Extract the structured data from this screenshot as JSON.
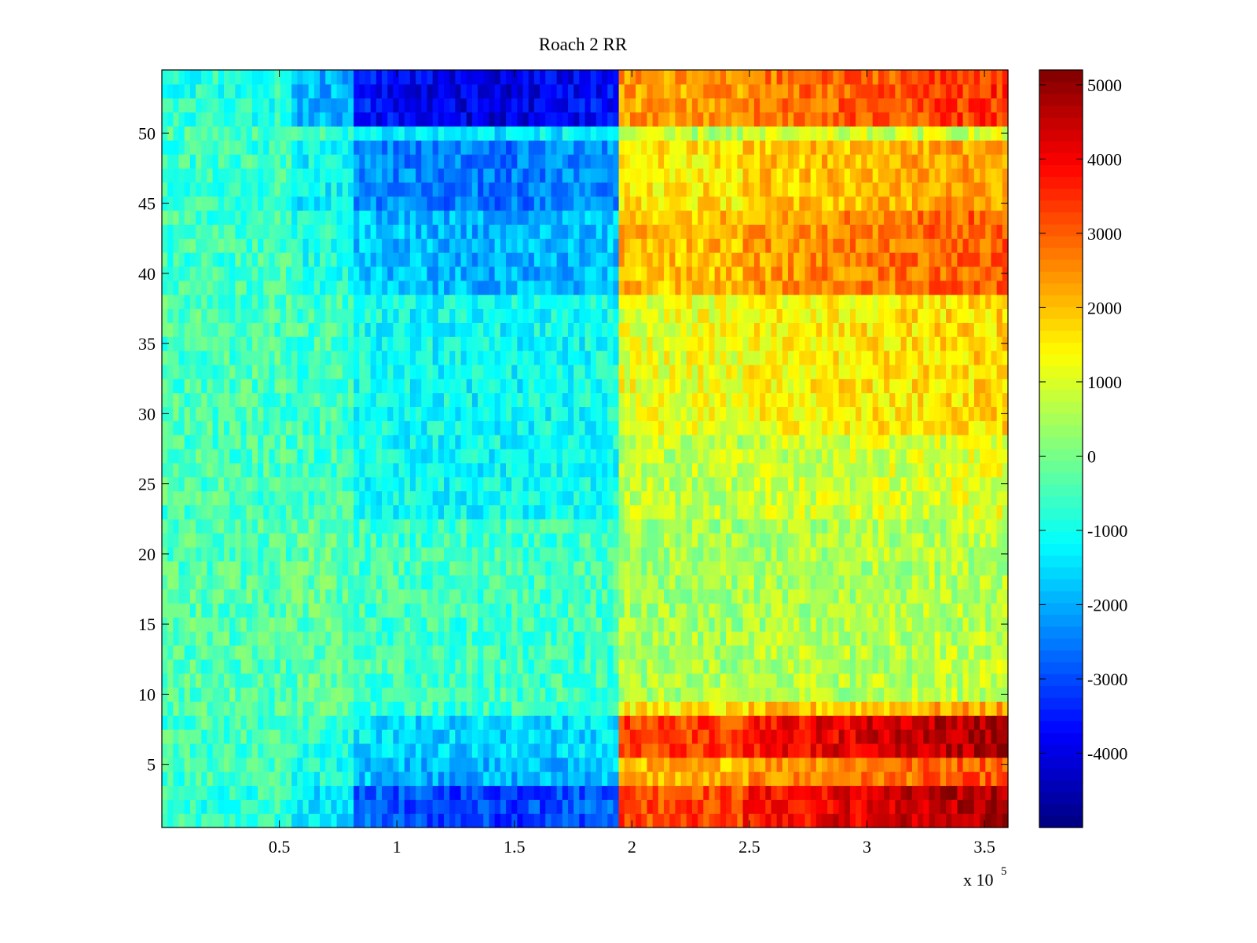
{
  "chart_data": {
    "type": "heatmap",
    "title": "Roach 2 RR",
    "xlabel": "",
    "ylabel": "",
    "x_multiplier_label": "x 10",
    "x_multiplier_exponent": "5",
    "xlim": [
      0,
      360000
    ],
    "ylim": [
      0.5,
      54.5
    ],
    "x_ticks": [
      50000,
      100000,
      150000,
      200000,
      250000,
      300000,
      350000
    ],
    "x_tick_labels": [
      "0.5",
      "1",
      "1.5",
      "2",
      "2.5",
      "3",
      "3.5"
    ],
    "y_ticks": [
      5,
      10,
      15,
      20,
      25,
      30,
      35,
      40,
      45,
      50
    ],
    "y_tick_labels": [
      "5",
      "10",
      "15",
      "20",
      "25",
      "30",
      "35",
      "40",
      "45",
      "50"
    ],
    "rows": 54,
    "colormap": "jet",
    "colorbar": {
      "range": [
        -5000,
        5200
      ],
      "ticks": [
        -4000,
        -3000,
        -2000,
        -1000,
        0,
        1000,
        2000,
        3000,
        4000,
        5000
      ],
      "tick_labels": [
        "-4000",
        "-3000",
        "-2000",
        "-1000",
        "0",
        "1000",
        "2000",
        "3000",
        "4000",
        "5000"
      ],
      "placement": "right"
    },
    "x_segments": [
      {
        "x_start": 0,
        "x_end": 55000,
        "level": "low"
      },
      {
        "x_start": 55000,
        "x_end": 82000,
        "level": "mid-negative"
      },
      {
        "x_start": 82000,
        "x_end": 194000,
        "level": "negative"
      },
      {
        "x_start": 194000,
        "x_end": 248000,
        "level": "positive"
      },
      {
        "x_start": 248000,
        "x_end": 360000,
        "level": "high-positive"
      }
    ],
    "row_profile_note_values": {
      "rows_1_to_3": {
        "left": -2500,
        "right": 4800
      },
      "rows_6_to_8": {
        "left": -1500,
        "right": 5000
      },
      "rows_10_to_38": {
        "left": -600,
        "right": 1500
      },
      "rows_39_to_49": {
        "left": -2200,
        "right": 3000
      },
      "rows_51_to_54": {
        "left": -3500,
        "right": 3600
      }
    }
  }
}
